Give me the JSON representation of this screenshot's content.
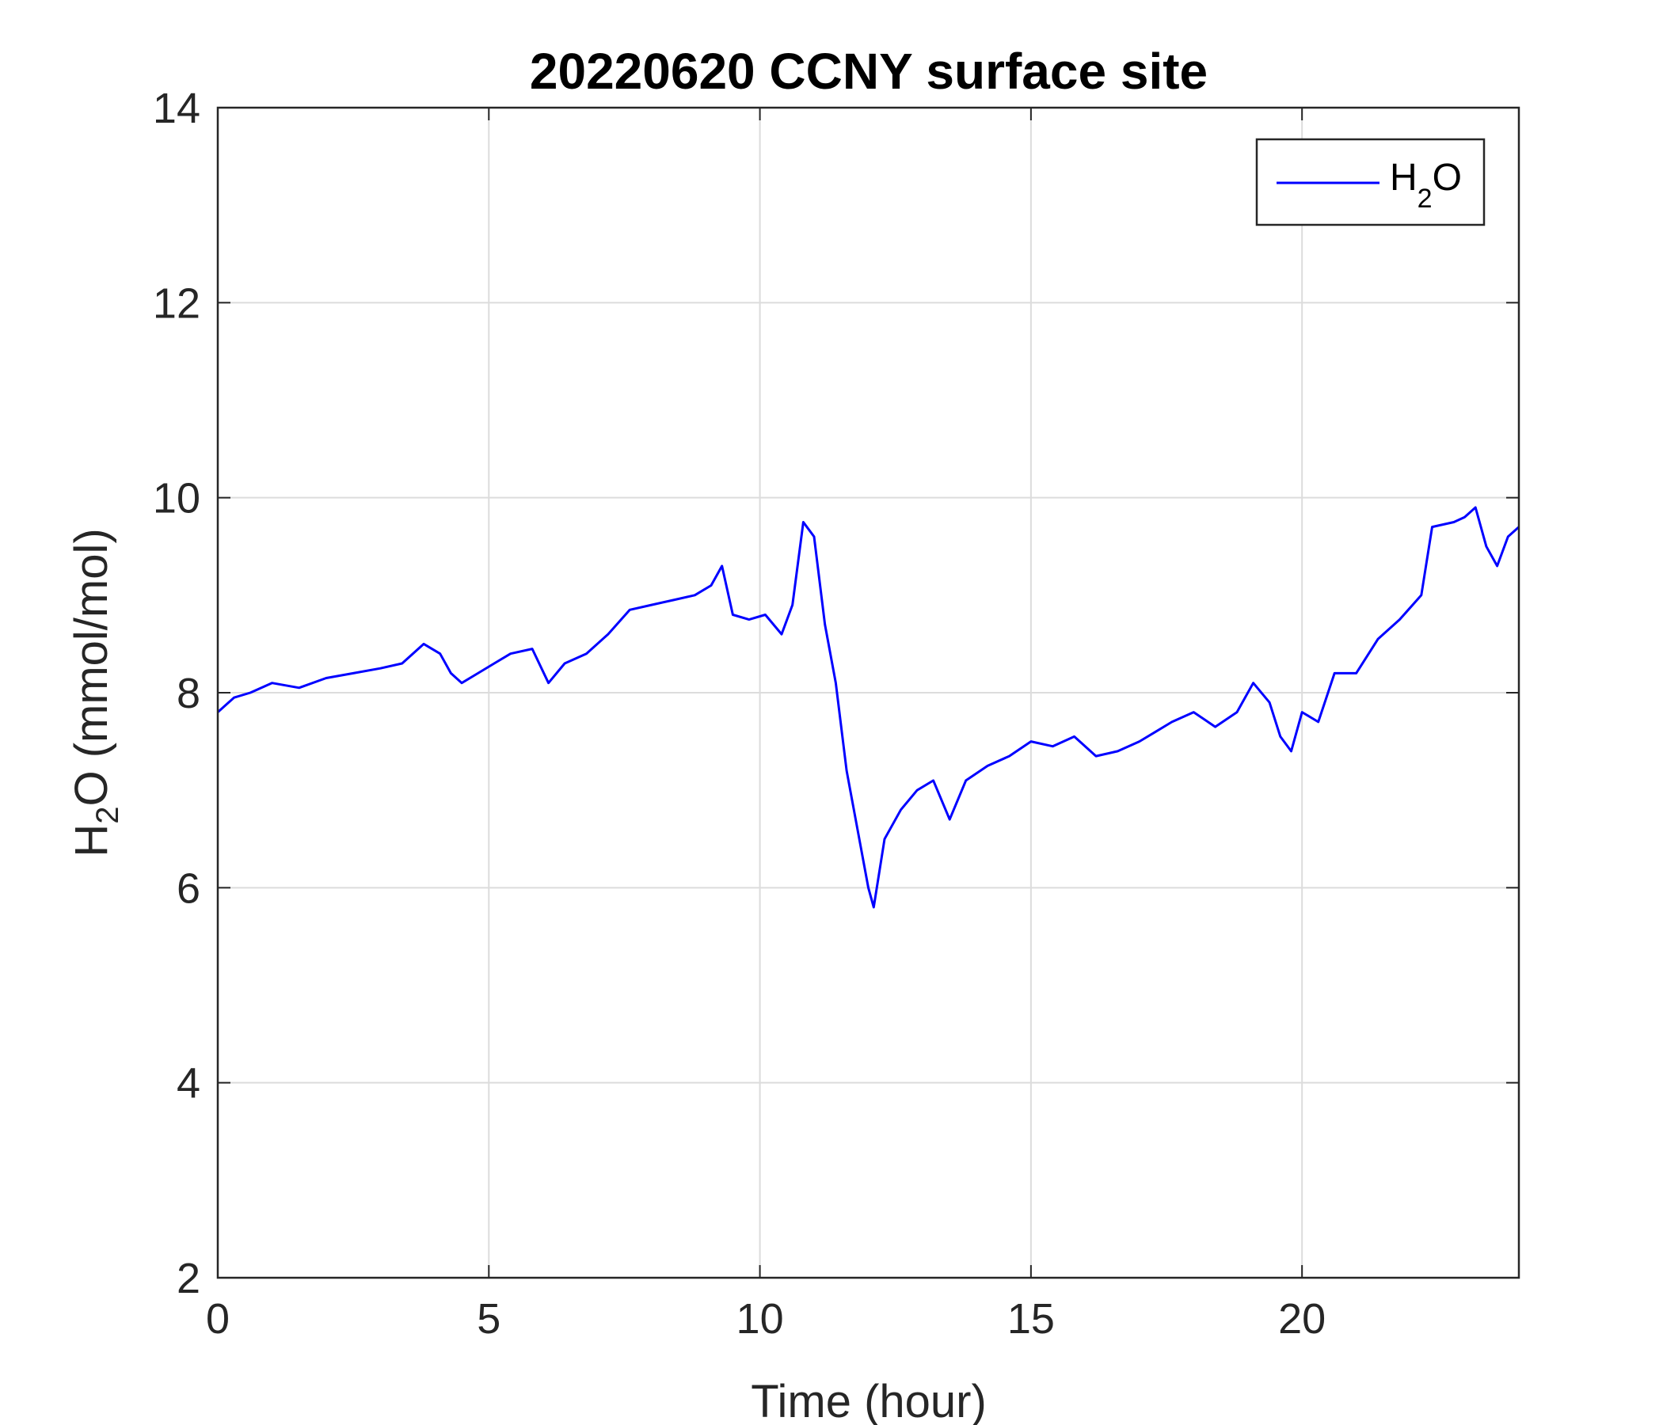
{
  "chart_data": {
    "type": "line",
    "title": "20220620 CCNY surface site",
    "xlabel": "Time (hour)",
    "ylabel_main": "H",
    "ylabel_sub": "2",
    "ylabel_rest": "O (mmol/mol)",
    "xlim": [
      0,
      24
    ],
    "ylim": [
      2,
      14
    ],
    "xticks": [
      0,
      5,
      10,
      15,
      20
    ],
    "yticks": [
      2,
      4,
      6,
      8,
      10,
      12,
      14
    ],
    "grid": true,
    "legend_position": "top-right",
    "series": [
      {
        "name_main": "H",
        "name_sub": "2",
        "name_rest": "O",
        "color": "#0000ff",
        "x": [
          0,
          0.3,
          0.6,
          1.0,
          1.5,
          2.0,
          2.5,
          3.0,
          3.4,
          3.8,
          4.1,
          4.3,
          4.5,
          4.8,
          5.1,
          5.4,
          5.8,
          6.1,
          6.4,
          6.8,
          7.2,
          7.6,
          8.0,
          8.4,
          8.8,
          9.1,
          9.3,
          9.5,
          9.8,
          10.1,
          10.4,
          10.6,
          10.8,
          11.0,
          11.2,
          11.4,
          11.6,
          11.8,
          12.0,
          12.1,
          12.3,
          12.6,
          12.9,
          13.2,
          13.5,
          13.8,
          14.2,
          14.6,
          15.0,
          15.4,
          15.8,
          16.2,
          16.6,
          17.0,
          17.3,
          17.6,
          18.0,
          18.4,
          18.8,
          19.1,
          19.4,
          19.6,
          19.8,
          20.0,
          20.3,
          20.6,
          21.0,
          21.4,
          21.8,
          22.2,
          22.4,
          22.8,
          23.0,
          23.2,
          23.4,
          23.6,
          23.8,
          24.0
        ],
        "y": [
          7.8,
          7.95,
          8.0,
          8.1,
          8.05,
          8.15,
          8.2,
          8.25,
          8.3,
          8.5,
          8.4,
          8.2,
          8.1,
          8.2,
          8.3,
          8.4,
          8.45,
          8.1,
          8.3,
          8.4,
          8.6,
          8.85,
          8.9,
          8.95,
          9.0,
          9.1,
          9.3,
          8.8,
          8.75,
          8.8,
          8.6,
          8.9,
          9.75,
          9.6,
          8.7,
          8.1,
          7.2,
          6.6,
          6.0,
          5.8,
          6.5,
          6.8,
          7.0,
          7.1,
          6.7,
          7.1,
          7.25,
          7.35,
          7.5,
          7.45,
          7.55,
          7.35,
          7.4,
          7.5,
          7.6,
          7.7,
          7.8,
          7.65,
          7.8,
          8.1,
          7.9,
          7.55,
          7.4,
          7.8,
          7.7,
          8.2,
          8.2,
          8.55,
          8.75,
          9.0,
          9.7,
          9.75,
          9.8,
          9.9,
          9.5,
          9.3,
          9.6,
          9.7
        ]
      }
    ]
  }
}
